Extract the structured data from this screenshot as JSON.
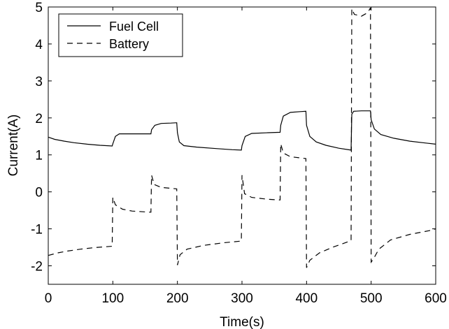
{
  "chart_data": {
    "type": "line",
    "xlabel": "Time(s)",
    "ylabel": "Current(A)",
    "xlim": [
      0,
      600
    ],
    "ylim": [
      -2.5,
      5
    ],
    "xticks": [
      "0",
      "100",
      "200",
      "300",
      "400",
      "500",
      "600"
    ],
    "yticks": [
      "-2",
      "-1",
      "0",
      "1",
      "2",
      "3",
      "4",
      "5"
    ],
    "grid": false,
    "legend_position": "top-left",
    "series": [
      {
        "name": "Fuel Cell",
        "style": "solid",
        "color": "#000000",
        "points": [
          [
            0,
            1.48
          ],
          [
            10,
            1.42
          ],
          [
            25,
            1.37
          ],
          [
            40,
            1.33
          ],
          [
            60,
            1.29
          ],
          [
            80,
            1.26
          ],
          [
            99,
            1.24
          ],
          [
            100,
            1.3
          ],
          [
            104,
            1.5
          ],
          [
            110,
            1.57
          ],
          [
            130,
            1.57
          ],
          [
            150,
            1.57
          ],
          [
            159,
            1.57
          ],
          [
            160,
            1.68
          ],
          [
            165,
            1.8
          ],
          [
            175,
            1.85
          ],
          [
            190,
            1.86
          ],
          [
            199,
            1.87
          ],
          [
            200,
            1.6
          ],
          [
            203,
            1.35
          ],
          [
            210,
            1.25
          ],
          [
            230,
            1.21
          ],
          [
            260,
            1.17
          ],
          [
            285,
            1.14
          ],
          [
            299,
            1.13
          ],
          [
            300,
            1.25
          ],
          [
            305,
            1.5
          ],
          [
            315,
            1.58
          ],
          [
            340,
            1.6
          ],
          [
            359,
            1.61
          ],
          [
            360,
            1.8
          ],
          [
            364,
            2.05
          ],
          [
            375,
            2.15
          ],
          [
            390,
            2.17
          ],
          [
            399,
            2.18
          ],
          [
            400,
            1.8
          ],
          [
            405,
            1.5
          ],
          [
            415,
            1.35
          ],
          [
            430,
            1.26
          ],
          [
            450,
            1.18
          ],
          [
            469,
            1.13
          ],
          [
            470,
            2.1
          ],
          [
            473,
            2.18
          ],
          [
            485,
            2.19
          ],
          [
            499,
            2.19
          ],
          [
            500,
            1.95
          ],
          [
            505,
            1.7
          ],
          [
            515,
            1.55
          ],
          [
            535,
            1.45
          ],
          [
            560,
            1.37
          ],
          [
            585,
            1.32
          ],
          [
            600,
            1.29
          ]
        ]
      },
      {
        "name": "Battery",
        "style": "dashed",
        "color": "#000000",
        "points": [
          [
            0,
            -1.72
          ],
          [
            15,
            -1.65
          ],
          [
            30,
            -1.6
          ],
          [
            50,
            -1.55
          ],
          [
            70,
            -1.51
          ],
          [
            99,
            -1.47
          ],
          [
            100,
            -0.15
          ],
          [
            104,
            -0.35
          ],
          [
            115,
            -0.47
          ],
          [
            130,
            -0.52
          ],
          [
            159,
            -0.55
          ],
          [
            160,
            0.45
          ],
          [
            164,
            0.2
          ],
          [
            175,
            0.12
          ],
          [
            199,
            0.08
          ],
          [
            200,
            -1.98
          ],
          [
            204,
            -1.7
          ],
          [
            215,
            -1.55
          ],
          [
            240,
            -1.45
          ],
          [
            270,
            -1.38
          ],
          [
            299,
            -1.33
          ],
          [
            300,
            0.45
          ],
          [
            304,
            -0.05
          ],
          [
            315,
            -0.15
          ],
          [
            340,
            -0.2
          ],
          [
            359,
            -0.22
          ],
          [
            360,
            1.3
          ],
          [
            364,
            1.05
          ],
          [
            375,
            0.95
          ],
          [
            390,
            0.92
          ],
          [
            399,
            0.9
          ],
          [
            400,
            -2.05
          ],
          [
            405,
            -1.85
          ],
          [
            420,
            -1.65
          ],
          [
            440,
            -1.5
          ],
          [
            469,
            -1.32
          ],
          [
            470,
            4.95
          ],
          [
            474,
            4.8
          ],
          [
            485,
            4.75
          ],
          [
            495,
            4.85
          ],
          [
            499,
            4.98
          ],
          [
            500,
            -1.9
          ],
          [
            504,
            -1.8
          ],
          [
            512,
            -1.55
          ],
          [
            530,
            -1.3
          ],
          [
            560,
            -1.15
          ],
          [
            590,
            -1.05
          ],
          [
            600,
            -1.0
          ]
        ]
      }
    ]
  }
}
